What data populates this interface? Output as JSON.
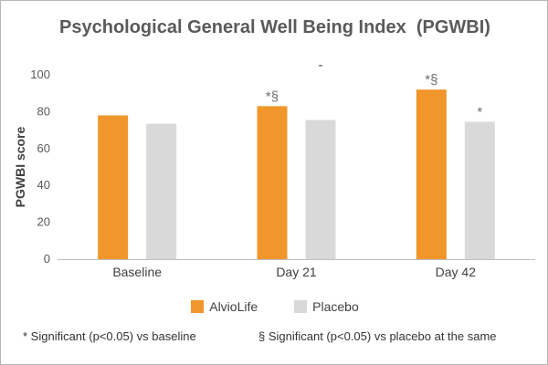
{
  "chart_data": {
    "type": "bar",
    "title": "Psychological General Well Being Index  (PGWBI)",
    "ylabel": "PGWBI score",
    "xlabel": "",
    "ylim": [
      0,
      100
    ],
    "yticks": [
      0,
      20,
      40,
      60,
      80,
      100
    ],
    "categories": [
      "Baseline",
      "Day 21",
      "Day 42"
    ],
    "series": [
      {
        "name": "AlvioLife",
        "color": "#f0962b",
        "values": [
          78,
          83,
          92
        ],
        "annotations": [
          "",
          "*§",
          "*§"
        ]
      },
      {
        "name": "Placebo",
        "color": "#d9d9d9",
        "values": [
          73.5,
          75.5,
          74.5
        ],
        "annotations": [
          "",
          "-",
          "*"
        ]
      }
    ],
    "grid": false,
    "legend_position": "bottom"
  },
  "footnotes": {
    "significance_baseline": "* Significant (p<0.05) vs baseline",
    "significance_placebo": "§ Significant (p<0.05) vs placebo at the same"
  },
  "colors": {
    "annotation": "#6e6e6e",
    "axis": "#bfbfbf"
  }
}
